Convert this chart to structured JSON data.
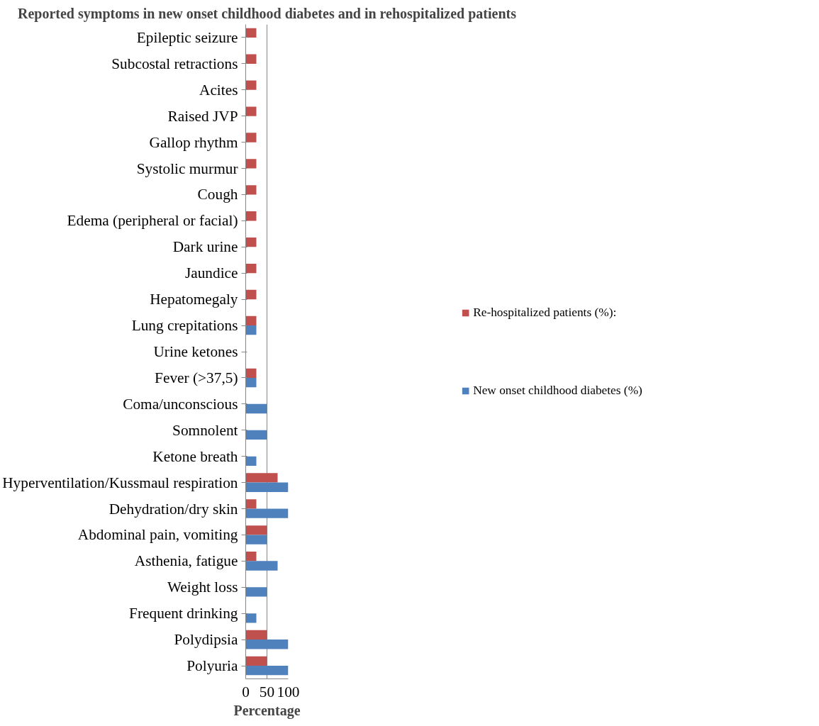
{
  "chart_data": {
    "type": "bar",
    "orientation": "horizontal",
    "title": "Reported symptoms in new onset childhood diabetes and in rehospitalized patients",
    "xlabel": "Percentage",
    "categories": [
      "Epileptic seizure",
      "Subcostal retractions",
      "Acites",
      "Raised JVP",
      "Gallop rhythm",
      "Systolic murmur",
      "Cough",
      "Edema (peripheral or facial)",
      "Dark urine",
      "Jaundice",
      "Hepatomegaly",
      "Lung crepitations",
      "Urine ketones",
      "Fever (>37,5)",
      "Coma/unconscious",
      "Somnolent",
      "Ketone breath",
      "Hyperventilation/Kussmaul respiration",
      "Dehydration/dry skin",
      "Abdominal pain, vomiting",
      "Asthenia, fatigue",
      "Weight loss",
      "Frequent drinking",
      "Polydipsia",
      "Polyuria"
    ],
    "series": [
      {
        "name": "Re-hospitalized patients (%):",
        "color": "#c0504d",
        "values": [
          25,
          25,
          25,
          25,
          25,
          25,
          25,
          25,
          25,
          25,
          25,
          25,
          0,
          25,
          0,
          0,
          0,
          75,
          25,
          50,
          25,
          0,
          0,
          50,
          50
        ]
      },
      {
        "name": "New onset childhood diabetes (%)",
        "color": "#4f81bd",
        "values": [
          0,
          0,
          0,
          0,
          0,
          0,
          0,
          0,
          0,
          0,
          0,
          25,
          0,
          25,
          50,
          50,
          25,
          100,
          100,
          50,
          75,
          50,
          25,
          100,
          100
        ]
      }
    ],
    "xlim": [
      0,
      100
    ],
    "xticks": [
      0,
      50,
      100
    ],
    "grid": "x",
    "legend": "right"
  }
}
